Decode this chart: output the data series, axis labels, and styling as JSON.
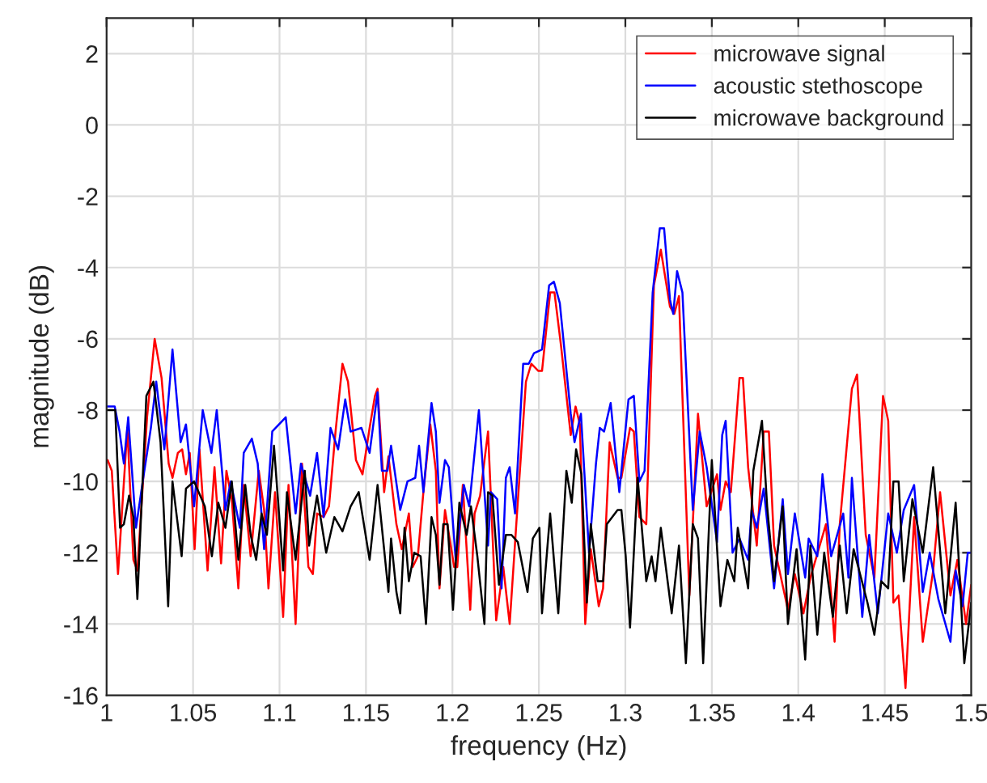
{
  "chart_data": {
    "type": "line",
    "xlabel": "frequency (Hz)",
    "ylabel": "magnitude (dB)",
    "xlim": [
      1,
      1.5
    ],
    "ylim": [
      -16,
      3
    ],
    "xticks": [
      1,
      1.05,
      1.1,
      1.15,
      1.2,
      1.25,
      1.3,
      1.35,
      1.4,
      1.45,
      1.5
    ],
    "yticks": [
      -16,
      -14,
      -12,
      -10,
      -8,
      -6,
      -4,
      -2,
      0,
      2
    ],
    "grid": true,
    "legend": "top right",
    "line_style": "solid",
    "marker": "none",
    "series": [
      {
        "name": "microwave signal",
        "color": "#ff0000",
        "x": [
          1.0006,
          1.003,
          1.0066,
          1.012,
          1.0155,
          1.0178,
          1.0234,
          1.0278,
          1.0318,
          1.0359,
          1.0381,
          1.0412,
          1.0437,
          1.0459,
          1.0481,
          1.0509,
          1.0537,
          1.0584,
          1.0624,
          1.0662,
          1.0693,
          1.0724,
          1.0762,
          1.0793,
          1.0833,
          1.088,
          1.0911,
          1.0936,
          1.0974,
          1.1021,
          1.1052,
          1.1093,
          1.113,
          1.1167,
          1.1193,
          1.1217,
          1.1255,
          1.1286,
          1.1324,
          1.1364,
          1.1396,
          1.1442,
          1.148,
          1.1521,
          1.1552,
          1.1567,
          1.1605,
          1.163,
          1.1676,
          1.1707,
          1.1748,
          1.177,
          1.18,
          1.1832,
          1.1872,
          1.1904,
          1.1925,
          1.1957,
          1.201,
          1.2028,
          1.206,
          1.2103,
          1.2128,
          1.216,
          1.2206,
          1.2253,
          1.2294,
          1.2331,
          1.2372,
          1.2425,
          1.2456,
          1.2497,
          1.2518,
          1.2565,
          1.259,
          1.2628,
          1.2684,
          1.2712,
          1.2737,
          1.2768,
          1.28,
          1.2846,
          1.2871,
          1.2909,
          1.2955,
          1.2977,
          1.3027,
          1.3049,
          1.3081,
          1.3121,
          1.3165,
          1.3205,
          1.3258,
          1.3283,
          1.331,
          1.337,
          1.342,
          1.347,
          1.353,
          1.355,
          1.358,
          1.361,
          1.366,
          1.368,
          1.371,
          1.376,
          1.38,
          1.383,
          1.386,
          1.394,
          1.398,
          1.403,
          1.407,
          1.416,
          1.421,
          1.424,
          1.431,
          1.434,
          1.439,
          1.444,
          1.449,
          1.452,
          1.455,
          1.458,
          1.462,
          1.467,
          1.472,
          1.478,
          1.482,
          1.488,
          1.492,
          1.497,
          1.5
        ],
        "values": [
          -9.4,
          -9.7,
          -12.6,
          -8.5,
          -12.2,
          -12.5,
          -8.2,
          -6.0,
          -7.1,
          -9.5,
          -9.9,
          -9.2,
          -9.1,
          -9.8,
          -9.2,
          -11.9,
          -9.1,
          -12.5,
          -9.6,
          -12.3,
          -9.7,
          -10.5,
          -13.0,
          -10.1,
          -12.1,
          -9.7,
          -10.8,
          -13.0,
          -10.3,
          -13.8,
          -10.1,
          -14.0,
          -9.5,
          -12.4,
          -12.6,
          -10.9,
          -11.0,
          -10.7,
          -8.6,
          -6.7,
          -7.2,
          -9.4,
          -9.8,
          -8.5,
          -7.6,
          -7.4,
          -10.3,
          -9.3,
          -11.2,
          -11.9,
          -10.9,
          -12.4,
          -12.1,
          -10.3,
          -8.4,
          -9.7,
          -13.0,
          -10.8,
          -12.4,
          -12.4,
          -10.1,
          -13.6,
          -10.9,
          -10.4,
          -8.6,
          -13.9,
          -12.4,
          -14.0,
          -11.0,
          -7.2,
          -6.7,
          -6.9,
          -6.9,
          -4.7,
          -4.7,
          -6.2,
          -8.7,
          -7.9,
          -8.4,
          -14.0,
          -11.9,
          -13.5,
          -13.0,
          -8.9,
          -9.9,
          -9.9,
          -8.5,
          -8.6,
          -11.0,
          -11.2,
          -4.5,
          -3.5,
          -5.1,
          -5.3,
          -4.8,
          -13.2,
          -8.1,
          -10.7,
          -9.8,
          -10.8,
          -10.0,
          -10.3,
          -7.1,
          -7.1,
          -9.6,
          -11.8,
          -8.6,
          -8.6,
          -11.8,
          -13.6,
          -12.6,
          -13.7,
          -12.7,
          -11.2,
          -14.5,
          -11.2,
          -7.4,
          -7.0,
          -11.5,
          -12.7,
          -7.6,
          -8.3,
          -13.4,
          -13.2,
          -15.8,
          -11.0,
          -14.5,
          -12.5,
          -10.3,
          -13.2,
          -12.2,
          -14.0,
          -12.9
        ]
      },
      {
        "name": "acoustic stethoscope",
        "color": "#0000ff",
        "x": [
          1.0006,
          1.0047,
          1.0075,
          1.01,
          1.0125,
          1.017,
          1.0209,
          1.0256,
          1.0287,
          1.0334,
          1.0381,
          1.0428,
          1.0459,
          1.0506,
          1.0556,
          1.0606,
          1.0637,
          1.0687,
          1.0718,
          1.0771,
          1.0793,
          1.084,
          1.0874,
          1.0911,
          1.0958,
          1.1036,
          1.1093,
          1.1124,
          1.1177,
          1.1217,
          1.1255,
          1.1295,
          1.1339,
          1.138,
          1.1411,
          1.1474,
          1.1521,
          1.1567,
          1.1592,
          1.1624,
          1.1645,
          1.1698,
          1.174,
          1.1785,
          1.1807,
          1.1832,
          1.1879,
          1.1904,
          1.1925,
          1.1957,
          1.1979,
          1.2019,
          1.2066,
          1.2097,
          1.2153,
          1.2206,
          1.2222,
          1.2259,
          1.2284,
          1.2309,
          1.2331,
          1.2362,
          1.2409,
          1.2441,
          1.2472,
          1.2518,
          1.2559,
          1.2587,
          1.2621,
          1.2684,
          1.2706,
          1.2743,
          1.279,
          1.283,
          1.2852,
          1.2877,
          1.2915,
          1.2965,
          1.3018,
          1.3049,
          1.3081,
          1.3111,
          1.3158,
          1.3199,
          1.3224,
          1.3258,
          1.3277,
          1.3299,
          1.333,
          1.339,
          1.343,
          1.347,
          1.353,
          1.356,
          1.358,
          1.362,
          1.366,
          1.371,
          1.373,
          1.376,
          1.38,
          1.386,
          1.391,
          1.394,
          1.398,
          1.404,
          1.406,
          1.411,
          1.414,
          1.419,
          1.426,
          1.429,
          1.431,
          1.437,
          1.441,
          1.446,
          1.452,
          1.457,
          1.461,
          1.467,
          1.472,
          1.476,
          1.481,
          1.488,
          1.491,
          1.495,
          1.498,
          1.5
        ],
        "values": [
          -7.9,
          -7.9,
          -8.6,
          -9.5,
          -8.2,
          -11.3,
          -10.0,
          -8.5,
          -7.2,
          -9.1,
          -6.3,
          -8.9,
          -8.4,
          -10.7,
          -8.0,
          -9.2,
          -8.0,
          -10.8,
          -10.0,
          -11.3,
          -9.2,
          -8.8,
          -9.5,
          -11.9,
          -8.6,
          -8.2,
          -10.9,
          -9.5,
          -10.4,
          -9.2,
          -11.0,
          -8.5,
          -9.1,
          -7.7,
          -8.6,
          -8.5,
          -9.2,
          -7.5,
          -9.7,
          -9.7,
          -9.0,
          -10.8,
          -10.0,
          -9.9,
          -9.0,
          -10.3,
          -7.8,
          -8.6,
          -10.6,
          -9.4,
          -9.6,
          -12.2,
          -10.1,
          -10.7,
          -8.0,
          -11.8,
          -10.3,
          -10.5,
          -13.0,
          -9.9,
          -9.6,
          -10.9,
          -6.7,
          -6.7,
          -6.4,
          -6.3,
          -4.5,
          -4.4,
          -5.0,
          -8.1,
          -8.9,
          -8.1,
          -12.0,
          -9.5,
          -8.5,
          -8.6,
          -7.8,
          -10.3,
          -7.7,
          -7.6,
          -10.0,
          -9.7,
          -4.7,
          -2.9,
          -2.9,
          -4.9,
          -5.3,
          -4.1,
          -4.7,
          -10.8,
          -8.6,
          -9.6,
          -11.7,
          -8.7,
          -8.3,
          -12.0,
          -11.6,
          -12.2,
          -10.8,
          -11.3,
          -10.2,
          -13.0,
          -10.5,
          -12.6,
          -10.9,
          -12.7,
          -11.6,
          -12.1,
          -9.8,
          -12.1,
          -10.9,
          -12.7,
          -9.9,
          -13.8,
          -11.5,
          -13.7,
          -10.9,
          -12.0,
          -10.8,
          -10.1,
          -13.1,
          -12.0,
          -13.3,
          -14.5,
          -12.5,
          -13.5,
          -12.0,
          -12.0
        ]
      },
      {
        "name": "microwave background",
        "color": "#000000",
        "x": [
          1.0006,
          1.005,
          1.0078,
          1.01,
          1.013,
          1.0155,
          1.0178,
          1.023,
          1.0271,
          1.0312,
          1.0356,
          1.0381,
          1.0434,
          1.0459,
          1.0506,
          1.0568,
          1.0609,
          1.0646,
          1.0687,
          1.0724,
          1.0762,
          1.0802,
          1.0833,
          1.0865,
          1.0896,
          1.0927,
          1.0968,
          1.1021,
          1.1043,
          1.1093,
          1.1146,
          1.1171,
          1.1217,
          1.127,
          1.1317,
          1.1364,
          1.1411,
          1.1458,
          1.1521,
          1.1567,
          1.163,
          1.1645,
          1.1676,
          1.1698,
          1.1723,
          1.1748,
          1.1779,
          1.1816,
          1.1847,
          1.1879,
          1.1904,
          1.1925,
          1.1947,
          1.1972,
          1.2003,
          1.204,
          1.2082,
          1.2107,
          1.2144,
          1.2185,
          1.2206,
          1.2231,
          1.2269,
          1.2309,
          1.2341,
          1.2378,
          1.2434,
          1.2465,
          1.2503,
          1.2518,
          1.2565,
          1.2612,
          1.2659,
          1.269,
          1.2715,
          1.2746,
          1.2777,
          1.28,
          1.284,
          1.2871,
          1.2893,
          1.2924,
          1.2955,
          1.2977,
          1.3002,
          1.3027,
          1.3071,
          1.3121,
          1.3152,
          1.3174,
          1.3205,
          1.3268,
          1.331,
          1.335,
          1.339,
          1.342,
          1.345,
          1.35,
          1.355,
          1.359,
          1.363,
          1.365,
          1.371,
          1.374,
          1.379,
          1.382,
          1.386,
          1.391,
          1.394,
          1.399,
          1.404,
          1.407,
          1.411,
          1.415,
          1.42,
          1.424,
          1.428,
          1.432,
          1.44,
          1.444,
          1.448,
          1.452,
          1.455,
          1.458,
          1.461,
          1.466,
          1.472,
          1.478,
          1.485,
          1.491,
          1.496,
          1.5
        ],
        "values": [
          -8.0,
          -8.0,
          -11.3,
          -11.2,
          -10.4,
          -11.0,
          -13.3,
          -7.6,
          -7.2,
          -8.9,
          -13.5,
          -10.0,
          -12.1,
          -10.2,
          -10.0,
          -10.7,
          -12.1,
          -10.6,
          -11.3,
          -10.0,
          -12.2,
          -10.1,
          -11.5,
          -12.2,
          -10.9,
          -11.5,
          -9.0,
          -12.5,
          -10.3,
          -12.2,
          -9.7,
          -11.8,
          -10.4,
          -12.0,
          -11.0,
          -11.4,
          -10.7,
          -10.3,
          -12.2,
          -10.1,
          -13.1,
          -11.6,
          -13.1,
          -13.7,
          -11.3,
          -12.8,
          -12.0,
          -12.1,
          -14.0,
          -11.0,
          -11.5,
          -12.9,
          -11.2,
          -11.2,
          -13.6,
          -10.6,
          -11.5,
          -10.7,
          -12.1,
          -14.0,
          -10.3,
          -10.4,
          -12.9,
          -11.5,
          -11.5,
          -11.7,
          -13.1,
          -11.6,
          -11.3,
          -13.7,
          -10.9,
          -13.7,
          -9.7,
          -10.6,
          -9.1,
          -9.8,
          -13.4,
          -11.2,
          -12.8,
          -12.8,
          -11.2,
          -11.0,
          -10.8,
          -10.8,
          -12.1,
          -14.1,
          -9.9,
          -12.8,
          -12.1,
          -12.8,
          -11.3,
          -13.7,
          -11.8,
          -15.1,
          -11.2,
          -11.6,
          -15.1,
          -9.4,
          -13.5,
          -12.2,
          -12.8,
          -11.3,
          -13.0,
          -9.7,
          -8.3,
          -10.7,
          -12.8,
          -10.7,
          -14.0,
          -11.9,
          -15.0,
          -11.8,
          -14.3,
          -12.0,
          -13.8,
          -11.8,
          -13.7,
          -11.9,
          -13.4,
          -14.3,
          -12.8,
          -13.0,
          -10.0,
          -10.0,
          -12.8,
          -10.5,
          -12.0,
          -9.6,
          -13.7,
          -10.6,
          -15.1,
          -13.4
        ]
      }
    ]
  }
}
